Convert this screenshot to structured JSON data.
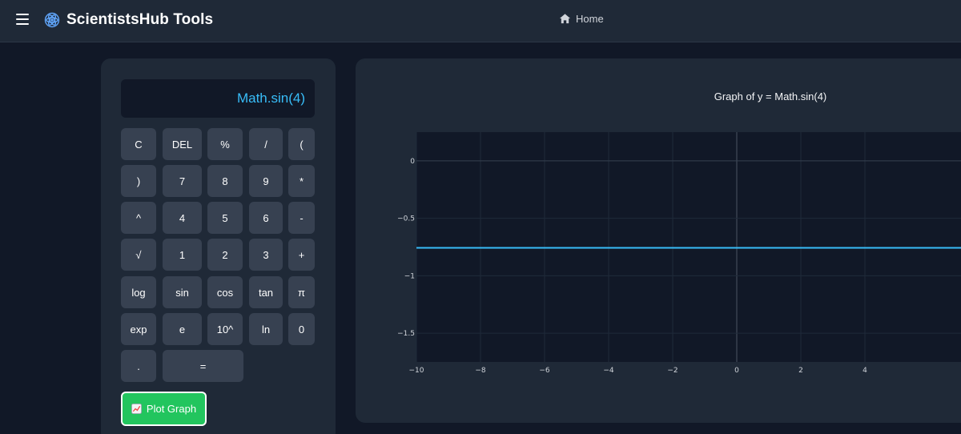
{
  "header": {
    "brand": "ScientistsHub Tools",
    "home_label": "Home"
  },
  "calculator": {
    "display": "Math.sin(4)",
    "keys": [
      "C",
      "DEL",
      "%",
      "/",
      "(",
      ")",
      "7",
      "8",
      "9",
      "*",
      "^",
      "4",
      "5",
      "6",
      "-",
      "√",
      "1",
      "2",
      "3",
      "+",
      "log",
      "sin",
      "cos",
      "tan",
      "π",
      "exp",
      "e",
      "10^",
      "ln",
      "0",
      ".",
      "="
    ],
    "plot_label": "Plot Graph"
  },
  "graph": {
    "title": "Graph of y = Math.sin(4)"
  },
  "chart_data": {
    "type": "line",
    "title": "Graph of y = Math.sin(4)",
    "xlabel": "",
    "ylabel": "",
    "xlim": [
      -10,
      7.5
    ],
    "ylim": [
      -1.75,
      0.25
    ],
    "x_ticks": [
      -10,
      -8,
      -6,
      -4,
      -2,
      0,
      2,
      4
    ],
    "y_ticks": [
      0,
      -0.5,
      -1,
      -1.5
    ],
    "x_tick_labels": [
      "−10",
      "−8",
      "−6",
      "−4",
      "−2",
      "0",
      "2",
      "4"
    ],
    "y_tick_labels": [
      "0",
      "−0.5",
      "−1",
      "−1.5"
    ],
    "grid": true,
    "series": [
      {
        "x": [
          -10,
          7.5
        ],
        "y": [
          -0.7568,
          -0.7568
        ],
        "color": "#38bdf8"
      }
    ]
  },
  "colors": {
    "accent": "#38bdf8",
    "plot_button": "#22c55e",
    "brand_icon": "#60a5fa"
  }
}
